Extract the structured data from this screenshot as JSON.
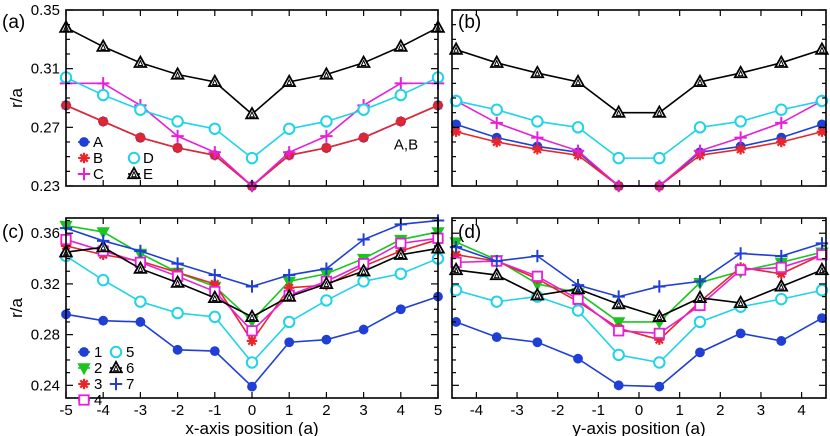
{
  "colors": {
    "A": "#1f3fd6",
    "B": "#e8262a",
    "C": "#e81fd8",
    "D": "#1fd3e8",
    "E": "#000000",
    "1": "#1f3fd6",
    "2": "#19c61f",
    "3": "#e8262a",
    "4": "#e81fd8",
    "5": "#1fd3e8",
    "6": "#000000",
    "7": "#1f3fd6"
  },
  "chart_data": [
    {
      "type": "line",
      "panel_label": "(a)",
      "xlabel": "",
      "ylabel": "r/a",
      "xlim": [
        -5,
        5
      ],
      "ylim": [
        0.23,
        0.35
      ],
      "yticks": [
        "0.35",
        "0.31",
        "0.27",
        "0.23"
      ],
      "annotation": "A,B",
      "x": [
        -5,
        -4,
        -3,
        -2,
        -1,
        0,
        1,
        2,
        3,
        4,
        5
      ],
      "series": [
        {
          "name": "A",
          "marker": "circle",
          "values": [
            0.285,
            0.274,
            0.263,
            0.256,
            0.251,
            0.23,
            0.251,
            0.256,
            0.263,
            0.274,
            0.285
          ]
        },
        {
          "name": "B",
          "marker": "asterisk",
          "values": [
            0.285,
            0.274,
            0.263,
            0.256,
            0.251,
            0.23,
            0.251,
            0.256,
            0.263,
            0.274,
            0.285
          ]
        },
        {
          "name": "C",
          "marker": "plus",
          "values": [
            0.3,
            0.3,
            0.285,
            0.264,
            0.253,
            0.23,
            0.253,
            0.264,
            0.285,
            0.3,
            0.3
          ]
        },
        {
          "name": "D",
          "marker": "open-circle",
          "values": [
            0.304,
            0.292,
            0.282,
            0.274,
            0.269,
            0.249,
            0.269,
            0.274,
            0.282,
            0.292,
            0.304
          ]
        },
        {
          "name": "E",
          "marker": "open-triangle",
          "values": [
            0.338,
            0.325,
            0.314,
            0.306,
            0.301,
            0.279,
            0.301,
            0.306,
            0.314,
            0.325,
            0.338
          ]
        }
      ]
    },
    {
      "type": "line",
      "panel_label": "(b)",
      "xlabel": "",
      "ylabel": "",
      "xlim": [
        -4.6,
        4.6
      ],
      "ylim": [
        0.23,
        0.35
      ],
      "x": [
        -4.5,
        -3.5,
        -2.5,
        -1.5,
        -0.5,
        0.5,
        1.5,
        2.5,
        3.5,
        4.5
      ],
      "series": [
        {
          "name": "A",
          "marker": "circle",
          "values": [
            0.272,
            0.263,
            0.257,
            0.253,
            0.23,
            0.23,
            0.253,
            0.257,
            0.263,
            0.272
          ]
        },
        {
          "name": "B",
          "marker": "asterisk",
          "values": [
            0.267,
            0.26,
            0.255,
            0.251,
            0.23,
            0.23,
            0.251,
            0.255,
            0.26,
            0.267
          ]
        },
        {
          "name": "C",
          "marker": "plus",
          "values": [
            0.288,
            0.273,
            0.263,
            0.254,
            0.23,
            0.23,
            0.254,
            0.263,
            0.273,
            0.288
          ]
        },
        {
          "name": "D",
          "marker": "open-circle",
          "values": [
            0.288,
            0.282,
            0.274,
            0.27,
            0.249,
            0.249,
            0.27,
            0.274,
            0.282,
            0.288
          ]
        },
        {
          "name": "E",
          "marker": "open-triangle",
          "values": [
            0.323,
            0.314,
            0.307,
            0.301,
            0.28,
            0.28,
            0.301,
            0.307,
            0.314,
            0.323
          ]
        }
      ]
    },
    {
      "type": "line",
      "panel_label": "(c)",
      "xlabel": "x-axis position (a)",
      "ylabel": "r/a",
      "xlim": [
        -5,
        5
      ],
      "ylim": [
        0.23,
        0.372
      ],
      "xticks": [
        "-5",
        "-4",
        "-3",
        "-2",
        "-1",
        "0",
        "1",
        "2",
        "3",
        "4",
        "5"
      ],
      "yticks": [
        "0.36",
        "0.32",
        "0.28",
        "0.24"
      ],
      "x": [
        -5,
        -4,
        -3,
        -2,
        -1,
        0,
        1,
        2,
        3,
        4,
        5
      ],
      "series": [
        {
          "name": "1",
          "marker": "circle",
          "values": [
            0.296,
            0.291,
            0.29,
            0.268,
            0.267,
            0.239,
            0.274,
            0.276,
            0.284,
            0.3,
            0.31
          ]
        },
        {
          "name": "2",
          "marker": "down-triangle",
          "values": [
            0.366,
            0.361,
            0.344,
            0.329,
            0.318,
            0.291,
            0.322,
            0.328,
            0.34,
            0.355,
            0.361
          ]
        },
        {
          "name": "3",
          "marker": "asterisk",
          "values": [
            0.35,
            0.343,
            0.338,
            0.329,
            0.32,
            0.275,
            0.317,
            0.319,
            0.334,
            0.346,
            0.355
          ]
        },
        {
          "name": "4",
          "marker": "open-square",
          "values": [
            0.355,
            0.346,
            0.337,
            0.326,
            0.314,
            0.283,
            0.311,
            0.322,
            0.336,
            0.352,
            0.356
          ]
        },
        {
          "name": "5",
          "marker": "open-circle",
          "values": [
            0.342,
            0.323,
            0.306,
            0.297,
            0.294,
            0.258,
            0.29,
            0.307,
            0.322,
            0.328,
            0.34
          ]
        },
        {
          "name": "6",
          "marker": "open-triangle",
          "values": [
            0.345,
            0.349,
            0.332,
            0.321,
            0.309,
            0.294,
            0.31,
            0.32,
            0.33,
            0.343,
            0.348
          ]
        },
        {
          "name": "7",
          "marker": "plus",
          "values": [
            0.364,
            0.354,
            0.346,
            0.336,
            0.327,
            0.318,
            0.327,
            0.332,
            0.355,
            0.367,
            0.37
          ]
        }
      ]
    },
    {
      "type": "line",
      "panel_label": "(d)",
      "xlabel": "y-axis position (a)",
      "ylabel": "",
      "xlim": [
        -4.6,
        4.6
      ],
      "ylim": [
        0.23,
        0.372
      ],
      "xticks": [
        "-4",
        "-3",
        "-2",
        "-1",
        "0",
        "1",
        "2",
        "3",
        "4"
      ],
      "x": [
        -4.5,
        -3.5,
        -2.5,
        -1.5,
        -0.5,
        0.5,
        1.5,
        2.5,
        3.5,
        4.5
      ],
      "series": [
        {
          "name": "1",
          "marker": "circle",
          "values": [
            0.29,
            0.278,
            0.274,
            0.261,
            0.24,
            0.239,
            0.266,
            0.281,
            0.275,
            0.293
          ]
        },
        {
          "name": "2",
          "marker": "down-triangle",
          "values": [
            0.353,
            0.339,
            0.32,
            0.313,
            0.29,
            0.29,
            0.321,
            0.33,
            0.337,
            0.345
          ]
        },
        {
          "name": "3",
          "marker": "asterisk",
          "values": [
            0.343,
            0.338,
            0.324,
            0.306,
            0.285,
            0.276,
            0.306,
            0.333,
            0.328,
            0.343
          ]
        },
        {
          "name": "4",
          "marker": "open-square",
          "values": [
            0.337,
            0.338,
            0.326,
            0.308,
            0.283,
            0.281,
            0.303,
            0.331,
            0.333,
            0.343
          ]
        },
        {
          "name": "5",
          "marker": "open-circle",
          "values": [
            0.315,
            0.306,
            0.31,
            0.299,
            0.264,
            0.258,
            0.29,
            0.302,
            0.308,
            0.315
          ]
        },
        {
          "name": "6",
          "marker": "open-triangle",
          "values": [
            0.331,
            0.327,
            0.311,
            0.316,
            0.304,
            0.294,
            0.309,
            0.305,
            0.318,
            0.331
          ]
        },
        {
          "name": "7",
          "marker": "plus",
          "values": [
            0.349,
            0.338,
            0.342,
            0.319,
            0.31,
            0.318,
            0.322,
            0.344,
            0.342,
            0.352
          ]
        }
      ]
    }
  ]
}
